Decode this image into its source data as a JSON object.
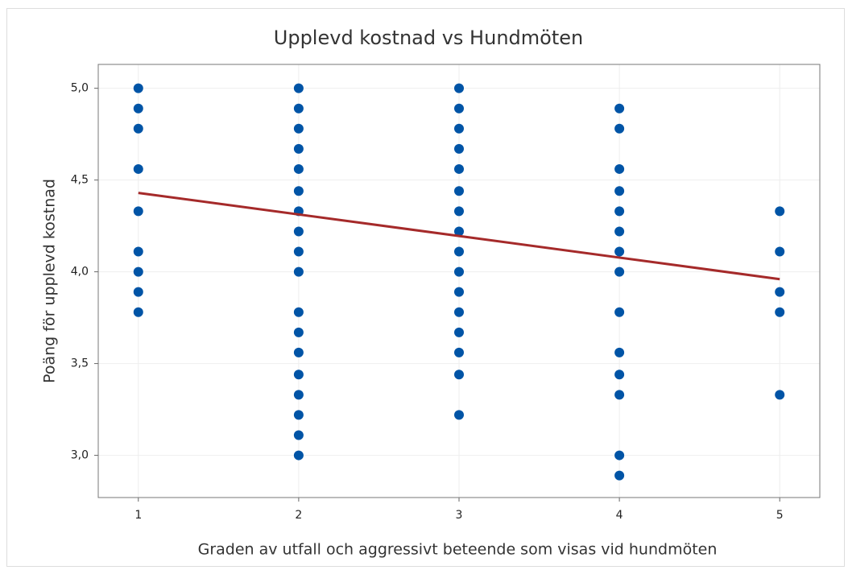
{
  "chart_data": {
    "type": "scatter",
    "title": "Upplevd kostnad vs Hundmöten",
    "xlabel": "Graden av utfall och aggressivt beteende  som visas vid hundmöten",
    "ylabel": "Poäng för upplevd kostnad",
    "xlim": [
      0.75,
      5.25
    ],
    "ylim": [
      2.77,
      5.13
    ],
    "xticks": [
      1,
      2,
      3,
      4,
      5
    ],
    "yticks": [
      {
        "value": 3,
        "label": "3,0"
      },
      {
        "value": 3.5,
        "label": "3,5"
      },
      {
        "value": 4,
        "label": "4,0"
      },
      {
        "value": 4.5,
        "label": "4,5"
      },
      {
        "value": 5,
        "label": "5,0"
      }
    ],
    "grid": true,
    "series": [
      {
        "type": "scatter",
        "color": "#0054a6",
        "x": [
          1,
          1,
          1,
          1,
          1,
          1,
          1,
          1,
          1,
          2,
          2,
          2,
          2,
          2,
          2,
          2,
          2,
          2,
          2,
          2,
          2,
          2,
          2,
          2,
          2,
          2,
          2,
          3,
          3,
          3,
          3,
          3,
          3,
          3,
          3,
          3,
          3,
          3,
          3,
          3,
          3,
          3,
          3,
          4,
          4,
          4,
          4,
          4,
          4,
          4,
          4,
          4,
          4,
          4,
          4,
          4,
          4,
          5,
          5,
          5,
          5,
          5
        ],
        "values": [
          5.0,
          4.89,
          4.78,
          4.56,
          4.33,
          4.11,
          4.0,
          3.89,
          3.78,
          5.0,
          4.89,
          4.78,
          4.67,
          4.56,
          4.44,
          4.33,
          4.22,
          4.11,
          4.0,
          3.78,
          3.67,
          3.56,
          3.44,
          3.33,
          3.22,
          3.11,
          3.0,
          5.0,
          4.89,
          4.78,
          4.67,
          4.56,
          4.44,
          4.33,
          4.22,
          4.11,
          4.0,
          3.89,
          3.78,
          3.67,
          3.56,
          3.44,
          3.22,
          4.89,
          4.78,
          4.56,
          4.44,
          4.33,
          4.22,
          4.11,
          4.0,
          3.78,
          3.56,
          3.44,
          3.33,
          3.0,
          2.89,
          4.33,
          4.11,
          3.89,
          3.78,
          3.33
        ]
      },
      {
        "type": "line",
        "color": "#a52a2a",
        "x": [
          1,
          5
        ],
        "values": [
          4.43,
          3.96
        ]
      }
    ]
  }
}
